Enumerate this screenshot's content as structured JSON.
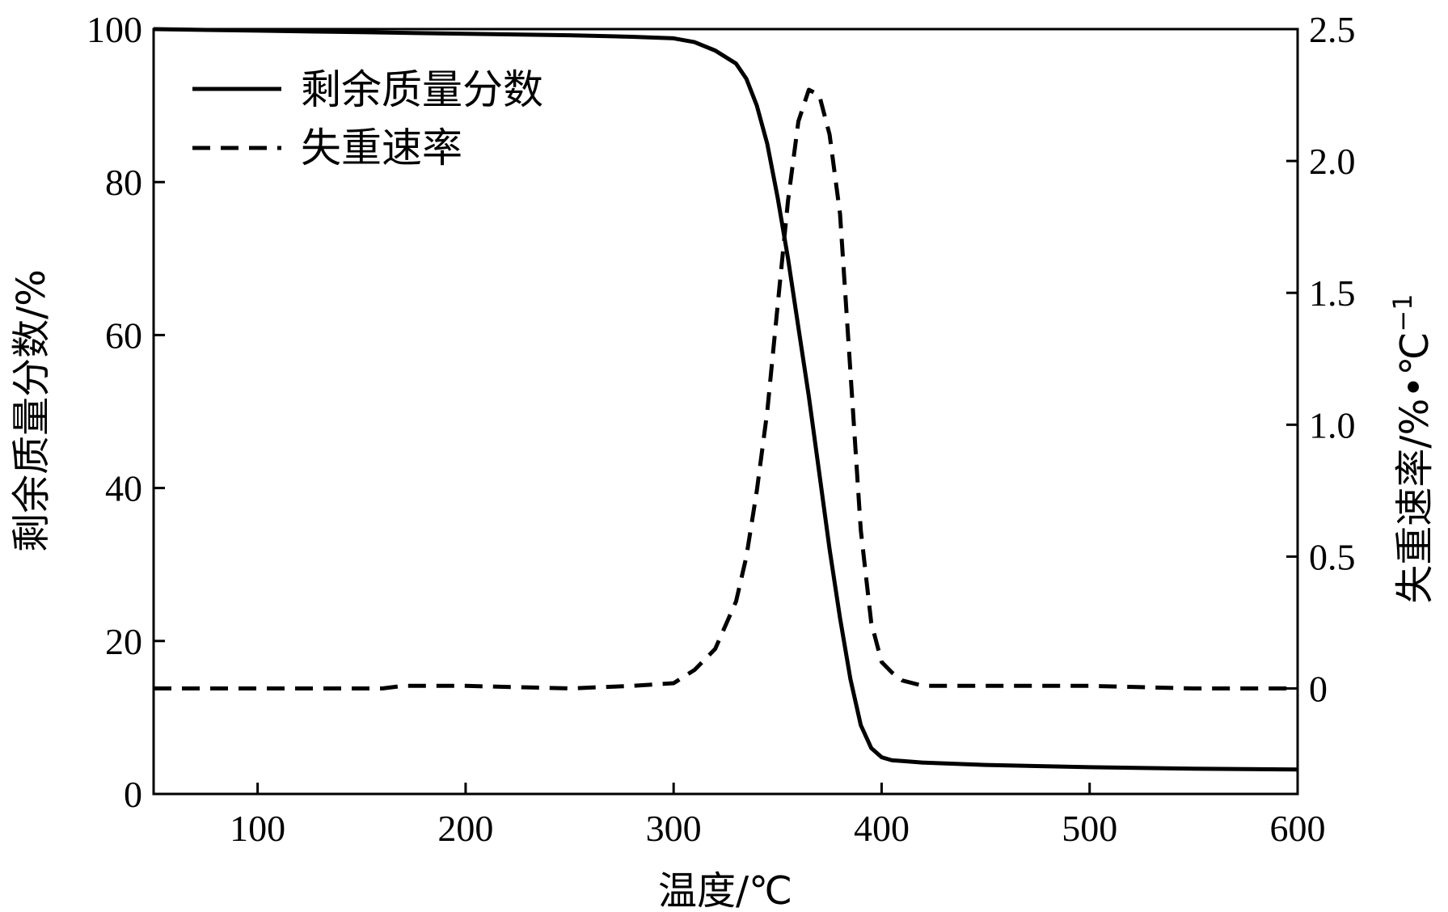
{
  "chart_data": {
    "type": "line",
    "xlabel": "温度/℃",
    "ylabel_left": "剩余质量分数/%",
    "ylabel_right_main": "失重速率/%•℃",
    "ylabel_right_sup": "−1",
    "xlim": [
      50,
      600
    ],
    "ylim_left": [
      0,
      100
    ],
    "ylim_right": [
      -0.4,
      2.5
    ],
    "x_ticks": [
      100,
      200,
      300,
      400,
      500,
      600
    ],
    "x_tick_labels": [
      "100",
      "200",
      "300",
      "400",
      "500",
      "600"
    ],
    "y_left_ticks": [
      0,
      20,
      40,
      60,
      80,
      100
    ],
    "y_left_tick_labels": [
      "0",
      "20",
      "40",
      "60",
      "80",
      "100"
    ],
    "y_right_ticks": [
      0,
      0.5,
      1.0,
      1.5,
      2.0,
      2.5
    ],
    "y_right_tick_labels": [
      "0",
      "0.5",
      "1.0",
      "1.5",
      "2.0",
      "2.5"
    ],
    "grid": false,
    "legend_position": "top-left",
    "series": [
      {
        "name": "剩余质量分数",
        "axis": "left",
        "style": "solid",
        "color": "#000000",
        "x": [
          50,
          100,
          150,
          200,
          250,
          280,
          300,
          310,
          320,
          330,
          335,
          340,
          345,
          350,
          355,
          360,
          365,
          370,
          375,
          380,
          385,
          390,
          395,
          400,
          405,
          410,
          420,
          450,
          500,
          550,
          600
        ],
        "y": [
          100,
          99.8,
          99.6,
          99.4,
          99.2,
          99.0,
          98.8,
          98.3,
          97.2,
          95.5,
          93.5,
          90.0,
          85.0,
          78.0,
          70.0,
          61.0,
          52.0,
          42.0,
          32.0,
          23.0,
          15.0,
          9.0,
          6.0,
          4.8,
          4.4,
          4.3,
          4.1,
          3.8,
          3.5,
          3.3,
          3.2
        ]
      },
      {
        "name": "失重速率",
        "axis": "right",
        "style": "dashed",
        "color": "#000000",
        "x": [
          50,
          100,
          150,
          160,
          170,
          200,
          250,
          280,
          300,
          310,
          320,
          330,
          335,
          340,
          345,
          350,
          355,
          360,
          365,
          370,
          375,
          380,
          385,
          390,
          395,
          400,
          405,
          410,
          420,
          450,
          500,
          550,
          600
        ],
        "y": [
          0.0,
          0.0,
          0.0,
          0.0,
          0.01,
          0.01,
          0.0,
          0.01,
          0.02,
          0.07,
          0.15,
          0.33,
          0.5,
          0.75,
          1.05,
          1.45,
          1.85,
          2.15,
          2.27,
          2.25,
          2.1,
          1.8,
          1.2,
          0.6,
          0.25,
          0.1,
          0.06,
          0.03,
          0.01,
          0.01,
          0.01,
          0.0,
          0.0
        ]
      }
    ]
  }
}
